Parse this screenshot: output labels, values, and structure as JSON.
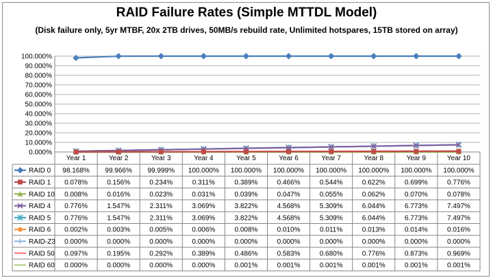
{
  "chart_data": {
    "type": "line",
    "title": "RAID Failure Rates (Simple MTTDL Model)",
    "subtitle": "(Disk failure only, 5yr MTBF, 20x 2TB drives, 50MB/s rebuild rate, Unlimited hotspares, 15TB stored on array)",
    "categories": [
      "Year 1",
      "Year 2",
      "Year 3",
      "Year 4",
      "Year 5",
      "Year 6",
      "Year 7",
      "Year 8",
      "Year 9",
      "Year 10"
    ],
    "ylim": [
      0,
      100
    ],
    "y_ticks": [
      "0.000%",
      "10.000%",
      "20.000%",
      "30.000%",
      "40.000%",
      "50.000%",
      "60.000%",
      "70.000%",
      "80.000%",
      "90.000%",
      "100.000%"
    ],
    "grid": true,
    "legend": "data-table",
    "series": [
      {
        "name": "RAID 0",
        "color": "#4a7ebb",
        "marker": "diamond",
        "values": [
          98.168,
          99.966,
          99.999,
          100,
          100,
          100,
          100,
          100,
          100,
          100
        ],
        "labels": [
          "98.168%",
          "99.966%",
          "99.999%",
          "100.000%",
          "100.000%",
          "100.000%",
          "100.000%",
          "100.000%",
          "100.000%",
          "100.000%"
        ]
      },
      {
        "name": "RAID 1",
        "color": "#be4b48",
        "marker": "square",
        "values": [
          0.078,
          0.156,
          0.234,
          0.311,
          0.389,
          0.466,
          0.544,
          0.622,
          0.699,
          0.776
        ],
        "labels": [
          "0.078%",
          "0.156%",
          "0.234%",
          "0.311%",
          "0.389%",
          "0.466%",
          "0.544%",
          "0.622%",
          "0.699%",
          "0.776%"
        ]
      },
      {
        "name": "RAID 10",
        "color": "#98b954",
        "marker": "triangle",
        "values": [
          0.008,
          0.016,
          0.023,
          0.031,
          0.039,
          0.047,
          0.055,
          0.062,
          0.07,
          0.078
        ],
        "labels": [
          "0.008%",
          "0.016%",
          "0.023%",
          "0.031%",
          "0.039%",
          "0.047%",
          "0.055%",
          "0.062%",
          "0.070%",
          "0.078%"
        ]
      },
      {
        "name": "RAID 4",
        "color": "#7d60a0",
        "marker": "x",
        "values": [
          0.776,
          1.547,
          2.311,
          3.069,
          3.822,
          4.568,
          5.309,
          6.044,
          6.773,
          7.497
        ],
        "labels": [
          "0.776%",
          "1.547%",
          "2.311%",
          "3.069%",
          "3.822%",
          "4.568%",
          "5.309%",
          "6.044%",
          "6.773%",
          "7.497%"
        ]
      },
      {
        "name": "RAID 5",
        "color": "#46aac5",
        "marker": "star",
        "values": [
          0.776,
          1.547,
          2.311,
          3.069,
          3.822,
          4.568,
          5.309,
          6.044,
          6.773,
          7.497
        ],
        "labels": [
          "0.776%",
          "1.547%",
          "2.311%",
          "3.069%",
          "3.822%",
          "4.568%",
          "5.309%",
          "6.044%",
          "6.773%",
          "7.497%"
        ]
      },
      {
        "name": "RAID 6",
        "color": "#f69545",
        "marker": "circle",
        "values": [
          0.002,
          0.003,
          0.005,
          0.006,
          0.008,
          0.01,
          0.011,
          0.013,
          0.014,
          0.016
        ],
        "labels": [
          "0.002%",
          "0.003%",
          "0.005%",
          "0.006%",
          "0.008%",
          "0.010%",
          "0.011%",
          "0.013%",
          "0.014%",
          "0.016%"
        ]
      },
      {
        "name": "RAID-Z3",
        "color": "#8eb4e3",
        "marker": "plus",
        "values": [
          0,
          0,
          0,
          0,
          0,
          0,
          0,
          0,
          0,
          0
        ],
        "labels": [
          "0.000%",
          "0.000%",
          "0.000%",
          "0.000%",
          "0.000%",
          "0.000%",
          "0.000%",
          "0.000%",
          "0.000%",
          "0.000%"
        ]
      },
      {
        "name": "RAID 50",
        "color": "#ff7f7f",
        "marker": "none",
        "values": [
          0.097,
          0.195,
          0.292,
          0.389,
          0.486,
          0.583,
          0.68,
          0.776,
          0.873,
          0.969
        ],
        "labels": [
          "0.097%",
          "0.195%",
          "0.292%",
          "0.389%",
          "0.486%",
          "0.583%",
          "0.680%",
          "0.776%",
          "0.873%",
          "0.969%"
        ]
      },
      {
        "name": "RAID 60",
        "color": "#b9d28f",
        "marker": "none",
        "values": [
          0,
          0,
          0,
          0,
          0.001,
          0.001,
          0.001,
          0.001,
          0.001,
          0.001
        ],
        "labels": [
          "0.000%",
          "0.000%",
          "0.000%",
          "0.000%",
          "0.001%",
          "0.001%",
          "0.001%",
          "0.001%",
          "0.001%",
          "0.001%"
        ]
      }
    ]
  }
}
